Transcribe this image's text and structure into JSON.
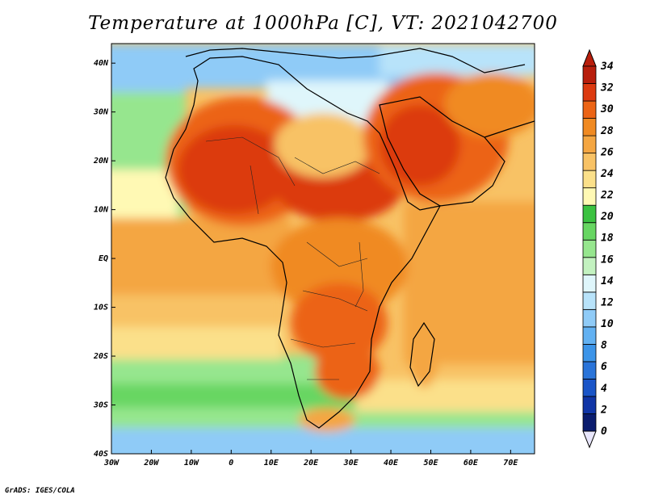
{
  "title": "Temperature at 1000hPa [C], VT: 2021042700",
  "credit": "GrADS: IGES/COLA",
  "map": {
    "lon_range": [
      -30,
      76
    ],
    "lat_range": [
      -40,
      44
    ],
    "lon_ticks": [
      "30W",
      "20W",
      "10W",
      "0",
      "10E",
      "20E",
      "30E",
      "40E",
      "50E",
      "60E",
      "70E"
    ],
    "lat_ticks": [
      "40S",
      "30S",
      "20S",
      "10S",
      "EQ",
      "10N",
      "20N",
      "30N",
      "40N"
    ]
  },
  "colorbar": {
    "levels": [
      "0",
      "2",
      "4",
      "6",
      "8",
      "10",
      "12",
      "14",
      "16",
      "18",
      "20",
      "22",
      "24",
      "26",
      "28",
      "30",
      "32",
      "34"
    ],
    "colors": [
      "#0a1c6e",
      "#1035a6",
      "#1a55c8",
      "#2a74d9",
      "#3c94e8",
      "#62b1f2",
      "#8fcbf7",
      "#b8e3fa",
      "#dff6fb",
      "#c3f2c0",
      "#96e68e",
      "#67d662",
      "#3bc241",
      "#fff9b4",
      "#fbe08a",
      "#f8c265",
      "#f4a642",
      "#f08a22",
      "#ec6415",
      "#dc3a10",
      "#b81e0c"
    ]
  }
}
